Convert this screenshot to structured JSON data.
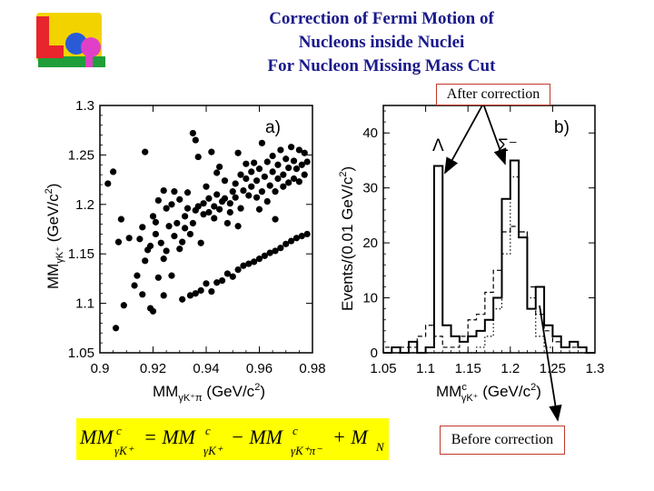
{
  "title": {
    "line1": "Correction of Fermi Motion of",
    "line2": "Nucleons inside Nuclei",
    "line3": "For Nucleon Missing Mass Cut"
  },
  "logo": {
    "name": "lepp-logo",
    "text": "LeP",
    "colors": [
      "#e8242c",
      "#f2d300",
      "#1f9e3a",
      "#2a5bd7",
      "#e040c8"
    ]
  },
  "callouts": {
    "after": "After correction",
    "before": "Before correction"
  },
  "formula": {
    "text": "MM^c_{γK+} = MM^c_{γK+} − MM^c_{γK+π−} + M_N",
    "parts": [
      "MM",
      "c",
      "γK⁺",
      "= MM",
      "c",
      "γK⁺",
      "− MM",
      "c",
      "γK⁺π⁻",
      "+ M",
      "N"
    ],
    "color": "#ffff00"
  },
  "chart_data": [
    {
      "type": "scatter",
      "panel_label": "a)",
      "xlabel": "MM_{γK+π}  (GeV/c²)",
      "ylabel": "MM_{γK+}  (GeV/c²)",
      "xlim": [
        0.9,
        0.98
      ],
      "ylim": [
        1.05,
        1.3
      ],
      "xticks": [
        0.9,
        0.92,
        0.94,
        0.96,
        0.98
      ],
      "xtick_labels": [
        "0.9",
        "0.92",
        "0.94",
        "0.96",
        "0.98"
      ],
      "yticks": [
        1.05,
        1.1,
        1.15,
        1.2,
        1.25,
        1.3
      ],
      "ytick_labels": [
        "1.05",
        "1.1",
        "1.15",
        "1.2",
        "1.25",
        "1.3"
      ],
      "points": [
        [
          0.903,
          1.221
        ],
        [
          0.905,
          1.233
        ],
        [
          0.906,
          1.075
        ],
        [
          0.907,
          1.162
        ],
        [
          0.908,
          1.185
        ],
        [
          0.909,
          1.098
        ],
        [
          0.911,
          1.166
        ],
        [
          0.913,
          1.118
        ],
        [
          0.914,
          1.128
        ],
        [
          0.915,
          1.165
        ],
        [
          0.916,
          1.177
        ],
        [
          0.917,
          1.253
        ],
        [
          0.917,
          1.143
        ],
        [
          0.918,
          1.154
        ],
        [
          0.919,
          1.095
        ],
        [
          0.919,
          1.158
        ],
        [
          0.92,
          1.188
        ],
        [
          0.921,
          1.17
        ],
        [
          0.921,
          1.182
        ],
        [
          0.922,
          1.204
        ],
        [
          0.922,
          1.126
        ],
        [
          0.923,
          1.161
        ],
        [
          0.924,
          1.214
        ],
        [
          0.924,
          1.108
        ],
        [
          0.925,
          1.196
        ],
        [
          0.925,
          1.153
        ],
        [
          0.926,
          1.178
        ],
        [
          0.927,
          1.2
        ],
        [
          0.927,
          1.128
        ],
        [
          0.928,
          1.168
        ],
        [
          0.928,
          1.213
        ],
        [
          0.929,
          1.181
        ],
        [
          0.93,
          1.155
        ],
        [
          0.93,
          1.205
        ],
        [
          0.931,
          1.104
        ],
        [
          0.931,
          1.162
        ],
        [
          0.932,
          1.188
        ],
        [
          0.932,
          1.176
        ],
        [
          0.933,
          1.196
        ],
        [
          0.933,
          1.212
        ],
        [
          0.934,
          1.17
        ],
        [
          0.934,
          1.108
        ],
        [
          0.935,
          1.181
        ],
        [
          0.935,
          1.272
        ],
        [
          0.936,
          1.194
        ],
        [
          0.936,
          1.11
        ],
        [
          0.937,
          1.198
        ],
        [
          0.937,
          1.248
        ],
        [
          0.938,
          1.161
        ],
        [
          0.938,
          1.113
        ],
        [
          0.939,
          1.19
        ],
        [
          0.939,
          1.201
        ],
        [
          0.94,
          1.218
        ],
        [
          0.94,
          1.12
        ],
        [
          0.941,
          1.192
        ],
        [
          0.941,
          1.206
        ],
        [
          0.942,
          1.253
        ],
        [
          0.942,
          1.112
        ],
        [
          0.943,
          1.186
        ],
        [
          0.943,
          1.198
        ],
        [
          0.944,
          1.21
        ],
        [
          0.944,
          1.121
        ],
        [
          0.945,
          1.195
        ],
        [
          0.945,
          1.238
        ],
        [
          0.946,
          1.203
        ],
        [
          0.946,
          1.123
        ],
        [
          0.947,
          1.206
        ],
        [
          0.947,
          1.224
        ],
        [
          0.948,
          1.181
        ],
        [
          0.948,
          1.13
        ],
        [
          0.949,
          1.192
        ],
        [
          0.949,
          1.201
        ],
        [
          0.95,
          1.213
        ],
        [
          0.95,
          1.127
        ],
        [
          0.951,
          1.221
        ],
        [
          0.951,
          1.207
        ],
        [
          0.952,
          1.252
        ],
        [
          0.952,
          1.134
        ],
        [
          0.953,
          1.196
        ],
        [
          0.953,
          1.23
        ],
        [
          0.954,
          1.214
        ],
        [
          0.954,
          1.138
        ],
        [
          0.955,
          1.226
        ],
        [
          0.955,
          1.241
        ],
        [
          0.956,
          1.209
        ],
        [
          0.956,
          1.14
        ],
        [
          0.957,
          1.218
        ],
        [
          0.957,
          1.233
        ],
        [
          0.958,
          1.242
        ],
        [
          0.958,
          1.142
        ],
        [
          0.959,
          1.207
        ],
        [
          0.959,
          1.224
        ],
        [
          0.96,
          1.236
        ],
        [
          0.96,
          1.145
        ],
        [
          0.961,
          1.213
        ],
        [
          0.961,
          1.262
        ],
        [
          0.962,
          1.228
        ],
        [
          0.962,
          1.148
        ],
        [
          0.963,
          1.203
        ],
        [
          0.963,
          1.243
        ],
        [
          0.964,
          1.219
        ],
        [
          0.964,
          1.151
        ],
        [
          0.965,
          1.233
        ],
        [
          0.965,
          1.249
        ],
        [
          0.966,
          1.213
        ],
        [
          0.966,
          1.153
        ],
        [
          0.967,
          1.226
        ],
        [
          0.967,
          1.24
        ],
        [
          0.968,
          1.255
        ],
        [
          0.968,
          1.156
        ],
        [
          0.969,
          1.218
        ],
        [
          0.969,
          1.23
        ],
        [
          0.97,
          1.246
        ],
        [
          0.97,
          1.16
        ],
        [
          0.971,
          1.222
        ],
        [
          0.971,
          1.237
        ],
        [
          0.972,
          1.258
        ],
        [
          0.972,
          1.163
        ],
        [
          0.973,
          1.226
        ],
        [
          0.973,
          1.244
        ],
        [
          0.974,
          1.236
        ],
        [
          0.974,
          1.166
        ],
        [
          0.975,
          1.223
        ],
        [
          0.975,
          1.255
        ],
        [
          0.976,
          1.24
        ],
        [
          0.976,
          1.168
        ],
        [
          0.977,
          1.23
        ],
        [
          0.977,
          1.252
        ],
        [
          0.978,
          1.243
        ],
        [
          0.978,
          1.17
        ],
        [
          0.92,
          1.092
        ],
        [
          0.924,
          1.145
        ],
        [
          0.936,
          1.265
        ],
        [
          0.944,
          1.232
        ],
        [
          0.952,
          1.178
        ],
        [
          0.96,
          1.195
        ],
        [
          0.966,
          1.185
        ],
        [
          0.916,
          1.109
        ]
      ]
    },
    {
      "type": "histogram",
      "panel_label": "b)",
      "xlabel": "MM^c_{γK+}  (GeV/c²)",
      "ylabel": "Events/(0.01 GeV/c²)",
      "xlim": [
        1.05,
        1.3
      ],
      "ylim": [
        0,
        45
      ],
      "xticks": [
        1.05,
        1.1,
        1.15,
        1.2,
        1.25,
        1.3
      ],
      "xtick_labels": [
        "1.05",
        "1.1",
        "1.15",
        "1.2",
        "1.25",
        "1.3"
      ],
      "yticks": [
        0,
        10,
        20,
        30,
        40
      ],
      "ytick_labels": [
        "0",
        "10",
        "20",
        "30",
        "40"
      ],
      "bin_width": 0.01,
      "bin_edges_start": 1.05,
      "annotations": [
        "Λ",
        "Σ⁻"
      ],
      "series": [
        {
          "style": "solid",
          "values": [
            0,
            1,
            0,
            2,
            0,
            1,
            34,
            5,
            3,
            2,
            3,
            4,
            6,
            10,
            28,
            35,
            21,
            8,
            12,
            5,
            3,
            1,
            2,
            1,
            0
          ]
        },
        {
          "style": "dashed",
          "values": [
            1,
            1,
            1,
            1,
            3,
            5,
            3,
            1,
            1,
            3,
            6,
            7,
            11,
            15,
            22,
            23,
            22,
            12,
            7,
            4,
            2,
            1,
            1,
            1,
            0
          ]
        },
        {
          "style": "dotted",
          "values": [
            0,
            0,
            0,
            0,
            0,
            0,
            0,
            0,
            0,
            0,
            0,
            1,
            3,
            8,
            18,
            32,
            22,
            10,
            3,
            1,
            0,
            0,
            0,
            0,
            0
          ]
        }
      ]
    }
  ]
}
